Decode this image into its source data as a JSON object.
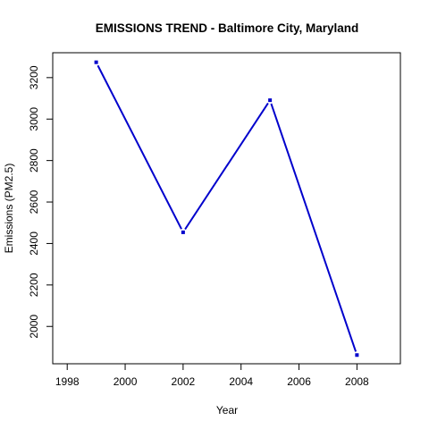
{
  "chart_data": {
    "type": "line",
    "title": "EMISSIONS TREND - Baltimore City, Maryland",
    "xlabel": "Year",
    "ylabel": "Emissions (PM2.5)",
    "xlim": [
      1997.5,
      2009.5
    ],
    "ylim": [
      1820,
      3320
    ],
    "x_ticks": [
      "1998",
      "2000",
      "2002",
      "2004",
      "2006",
      "2008"
    ],
    "y_ticks": [
      "2000",
      "2200",
      "2400",
      "2600",
      "2800",
      "3000",
      "3200"
    ],
    "grid": false,
    "line_color": "#0000cc",
    "series": [
      {
        "x": [
          1999,
          2002,
          2005,
          2008
        ],
        "values": [
          3274,
          2454,
          3091,
          1862
        ]
      }
    ]
  }
}
